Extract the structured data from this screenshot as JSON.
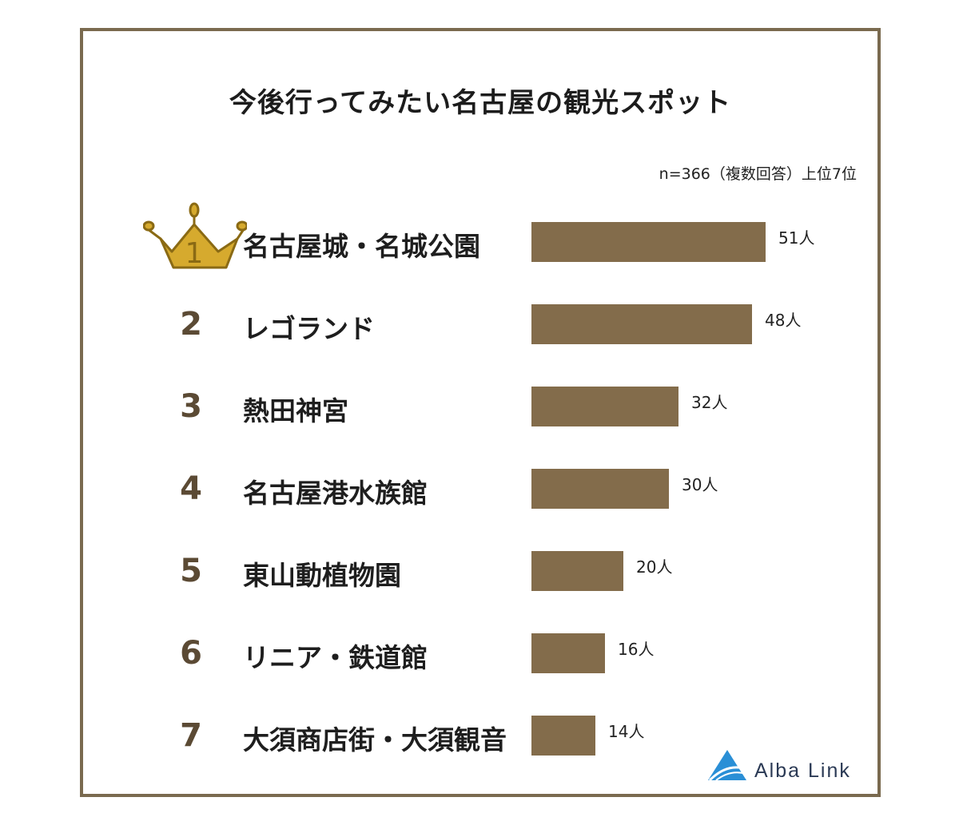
{
  "chart_data": {
    "type": "bar",
    "orientation": "horizontal",
    "title": "今後行ってみたい名古屋の観光スポット",
    "note": "n=366（複数回答）上位7位",
    "categories": [
      "名古屋城・名城公園",
      "レゴランド",
      "熱田神宮",
      "名古屋港水族館",
      "東山動植物園",
      "リニア・鉄道館",
      "大須商店街・大須観音"
    ],
    "ranks": [
      "1",
      "2",
      "3",
      "4",
      "5",
      "6",
      "7"
    ],
    "values": [
      51,
      48,
      32,
      30,
      20,
      16,
      14
    ],
    "value_labels": [
      "51人",
      "48人",
      "32人",
      "30人",
      "20人",
      "16人",
      "14人"
    ],
    "unit": "人",
    "bar_color": "#836c4b",
    "crown_color": "#d6aa2e",
    "frame_color": "#7a6a4f"
  },
  "brand": {
    "name": "Alba Link",
    "logo_icon": "alba-link-logo-icon"
  }
}
